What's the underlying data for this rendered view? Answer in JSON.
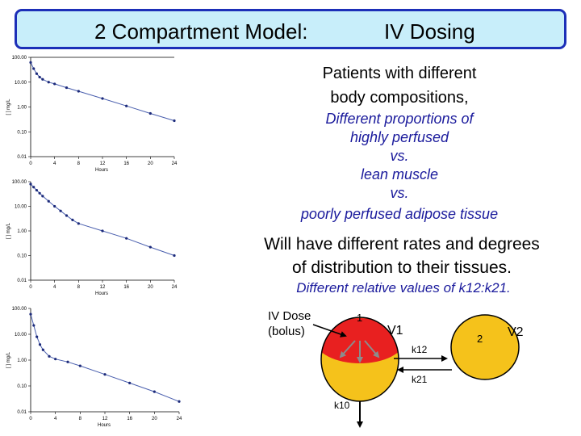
{
  "title": {
    "left": "2 Compartment Model:",
    "right": "IV Dosing"
  },
  "text": {
    "line1": "Patients with different",
    "line2": "body compositions,",
    "line3": "Different proportions of",
    "line4": "highly perfused",
    "line5": "vs.",
    "line6": "lean muscle",
    "line7": "vs.",
    "line8": "poorly perfused adipose tissue",
    "line9": "Will have different rates and degrees",
    "line10": "of distribution to their tissues.",
    "line11": "Different relative values of k12:k21."
  },
  "diagram": {
    "dose_label_1": "IV Dose",
    "dose_label_2": "(bolus)",
    "comp1_number": "1",
    "comp1_volume": "V1",
    "comp2_number": "2",
    "comp2_volume": "V2",
    "k12": "k12",
    "k21": "k21",
    "k10": "k10",
    "colors": {
      "compartment": "#f5c21b",
      "dose_region": "#e82020",
      "arrows": "#000000",
      "inner_arrows": "#8c8c8c"
    }
  },
  "chart_data": [
    {
      "type": "scatter",
      "connected": true,
      "log_y": true,
      "xlabel": "Hours",
      "ylabel": "[ ] mg/L",
      "xlim": [
        0,
        24
      ],
      "ylim": [
        0.01,
        100
      ],
      "x_ticks": [
        "0",
        "4",
        "8",
        "12",
        "16",
        "20",
        "24"
      ],
      "y_ticks": [
        "0.01",
        "0.10",
        "1.00",
        "10.00",
        "100.00"
      ],
      "x": [
        0,
        0.5,
        1,
        1.5,
        2,
        3,
        4,
        6,
        8,
        12,
        16,
        20,
        24
      ],
      "y": [
        62,
        35,
        22,
        16,
        13,
        10,
        8.5,
        6,
        4.3,
        2.2,
        1.1,
        0.55,
        0.28
      ]
    },
    {
      "type": "scatter",
      "connected": true,
      "log_y": true,
      "xlabel": "Hours",
      "ylabel": "[ ] mg/L",
      "xlim": [
        0,
        24
      ],
      "ylim": [
        0.01,
        100
      ],
      "x_ticks": [
        "0",
        "4",
        "8",
        "12",
        "16",
        "20",
        "24"
      ],
      "y_ticks": [
        "0.01",
        "0.10",
        "1.00",
        "10.00",
        "100.00"
      ],
      "x": [
        0,
        0.5,
        1,
        1.5,
        2,
        3,
        4,
        5,
        6,
        7,
        8,
        12,
        16,
        20,
        24
      ],
      "y": [
        80,
        60,
        45,
        34,
        26,
        16,
        10,
        6.5,
        4.2,
        2.8,
        2.0,
        1.0,
        0.5,
        0.22,
        0.1
      ]
    },
    {
      "type": "scatter",
      "connected": true,
      "log_y": true,
      "xlabel": "Hours",
      "ylabel": "[ ] mg/L",
      "xlim": [
        0,
        24
      ],
      "ylim": [
        0.01,
        100
      ],
      "x_ticks": [
        "0",
        "4",
        "8",
        "12",
        "16",
        "20",
        "24"
      ],
      "y_ticks": [
        "0.01",
        "0.10",
        "1.00",
        "10.00",
        "100.00"
      ],
      "x": [
        0,
        0.5,
        1,
        1.5,
        2,
        3,
        4,
        6,
        8,
        12,
        16,
        20,
        24
      ],
      "y": [
        60,
        22,
        8,
        4,
        2.5,
        1.4,
        1.1,
        0.85,
        0.6,
        0.28,
        0.13,
        0.06,
        0.025
      ]
    }
  ]
}
